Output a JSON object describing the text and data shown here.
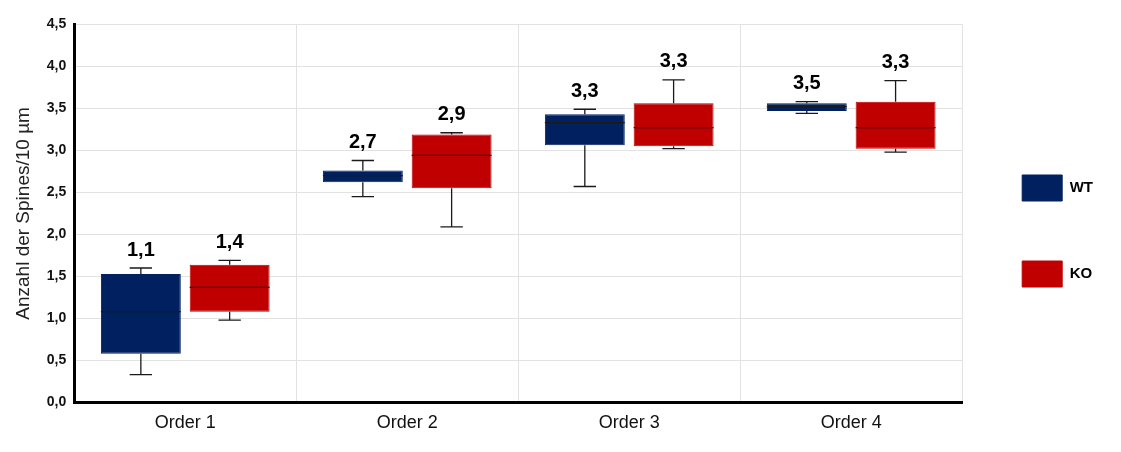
{
  "chart_data": {
    "type": "box",
    "ylabel": "Anzahl der Spines/10 µm",
    "categories": [
      "Order 1",
      "Order 2",
      "Order 3",
      "Order 4"
    ],
    "series": [
      {
        "name": "WT",
        "color": "#002060",
        "value_labels": [
          "1,1",
          "2,7",
          "3,3",
          "3,5"
        ],
        "boxes": [
          {
            "low": 0.33,
            "q1": 0.58,
            "median": 1.08,
            "q3": 1.53,
            "high": 1.6
          },
          {
            "low": 2.45,
            "q1": 2.62,
            "median": 2.7,
            "q3": 2.76,
            "high": 2.88
          },
          {
            "low": 2.57,
            "q1": 3.06,
            "median": 3.33,
            "q3": 3.43,
            "high": 3.49
          },
          {
            "low": 3.44,
            "q1": 3.47,
            "median": 3.52,
            "q3": 3.56,
            "high": 3.58
          }
        ]
      },
      {
        "name": "KO",
        "color": "#c00000",
        "value_labels": [
          "1,4",
          "2,9",
          "3,3",
          "3,3"
        ],
        "boxes": [
          {
            "low": 0.98,
            "q1": 1.08,
            "median": 1.37,
            "q3": 1.64,
            "high": 1.69
          },
          {
            "low": 2.09,
            "q1": 2.55,
            "median": 2.94,
            "q3": 3.19,
            "high": 3.21
          },
          {
            "low": 3.02,
            "q1": 3.05,
            "median": 3.27,
            "q3": 3.56,
            "high": 3.84
          },
          {
            "low": 2.98,
            "q1": 3.02,
            "median": 3.27,
            "q3": 3.58,
            "high": 3.83
          }
        ]
      }
    ],
    "ylim": [
      0,
      4.5
    ],
    "yticks": [
      {
        "value": 0,
        "label": "0,0"
      },
      {
        "value": 0.5,
        "label": "0,5"
      },
      {
        "value": 1,
        "label": "1,0"
      },
      {
        "value": 1.5,
        "label": "1,5"
      },
      {
        "value": 2,
        "label": "2,0"
      },
      {
        "value": 2.5,
        "label": "2,5"
      },
      {
        "value": 3,
        "label": "3,0"
      },
      {
        "value": 3.5,
        "label": "3,5"
      },
      {
        "value": 4,
        "label": "4,0"
      },
      {
        "value": 4.5,
        "label": "4,5"
      }
    ],
    "grid": true,
    "legend": "right"
  }
}
